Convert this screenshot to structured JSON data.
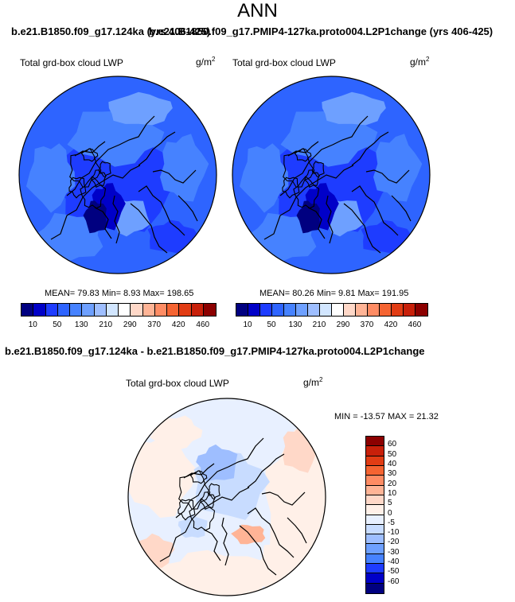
{
  "page": {
    "main_title": "ANN",
    "case_left": "b.e21.B1850.f09_g17.124ka (yrs 406-425)",
    "case_right": "b.e21.B1850.f09_g17.PMIP4-127ka.proto004.L2P1change (yrs 406-425)",
    "diff_title": "b.e21.B1850.f09_g17.124ka - b.e21.B1850.f09_g17.PMIP4-127ka.proto004.L2P1change"
  },
  "panels": [
    {
      "variable": "Total grd-box cloud LWP",
      "units_base": "g/m",
      "units_exp": "2",
      "stats": "MEAN=  79.83  Min=   8.93  Max= 198.65"
    },
    {
      "variable": "Total grd-box cloud LWP",
      "units_base": "g/m",
      "units_exp": "2",
      "stats": "MEAN=  80.26  Min=   9.81  Max= 191.95"
    },
    {
      "variable": "Total grd-box cloud LWP",
      "units_base": "g/m",
      "units_exp": "2",
      "stats": "MIN = -13.57 MAX =  21.32"
    }
  ],
  "chart_data": [
    {
      "type": "heatmap",
      "projection": "north polar stereographic",
      "title": "Total grd-box cloud LWP",
      "units": "g/m2",
      "mean": 79.83,
      "min": 8.93,
      "max": 198.65,
      "colorbar_ticks": [
        "10",
        "50",
        "130",
        "210",
        "290",
        "370",
        "420",
        "460"
      ],
      "colorbar_colors": [
        "#000080",
        "#0000c8",
        "#1e3cff",
        "#2e64ff",
        "#4682ff",
        "#6ea0ff",
        "#9ebeff",
        "#d2e6ff",
        "#ffffff",
        "#ffd8c8",
        "#ffb496",
        "#ff8c64",
        "#f56432",
        "#e13c14",
        "#c8200a",
        "#8c0000"
      ]
    },
    {
      "type": "heatmap",
      "projection": "north polar stereographic",
      "title": "Total grd-box cloud LWP",
      "units": "g/m2",
      "mean": 80.26,
      "min": 9.81,
      "max": 191.95,
      "colorbar_ticks": [
        "10",
        "50",
        "130",
        "210",
        "290",
        "370",
        "420",
        "460"
      ],
      "colorbar_colors": [
        "#000080",
        "#0000c8",
        "#1e3cff",
        "#2e64ff",
        "#4682ff",
        "#6ea0ff",
        "#9ebeff",
        "#d2e6ff",
        "#ffffff",
        "#ffd8c8",
        "#ffb496",
        "#ff8c64",
        "#f56432",
        "#e13c14",
        "#c8200a",
        "#8c0000"
      ]
    },
    {
      "type": "heatmap",
      "projection": "north polar stereographic",
      "title": "Total grd-box cloud LWP",
      "units": "g/m2",
      "min": -13.57,
      "max": 21.32,
      "colorbar_ticks": [
        "60",
        "50",
        "40",
        "30",
        "20",
        "10",
        "5",
        "0",
        "-5",
        "-10",
        "-20",
        "-30",
        "-40",
        "-50",
        "-60"
      ],
      "colorbar_colors": [
        "#8c0000",
        "#c8200a",
        "#e13c14",
        "#f56432",
        "#ff8c64",
        "#ffb496",
        "#ffd8c8",
        "#fff0e8",
        "#e8f0ff",
        "#c8dcff",
        "#9ebeff",
        "#6ea0ff",
        "#4682ff",
        "#1e3cff",
        "#0000c8",
        "#000080"
      ]
    }
  ]
}
